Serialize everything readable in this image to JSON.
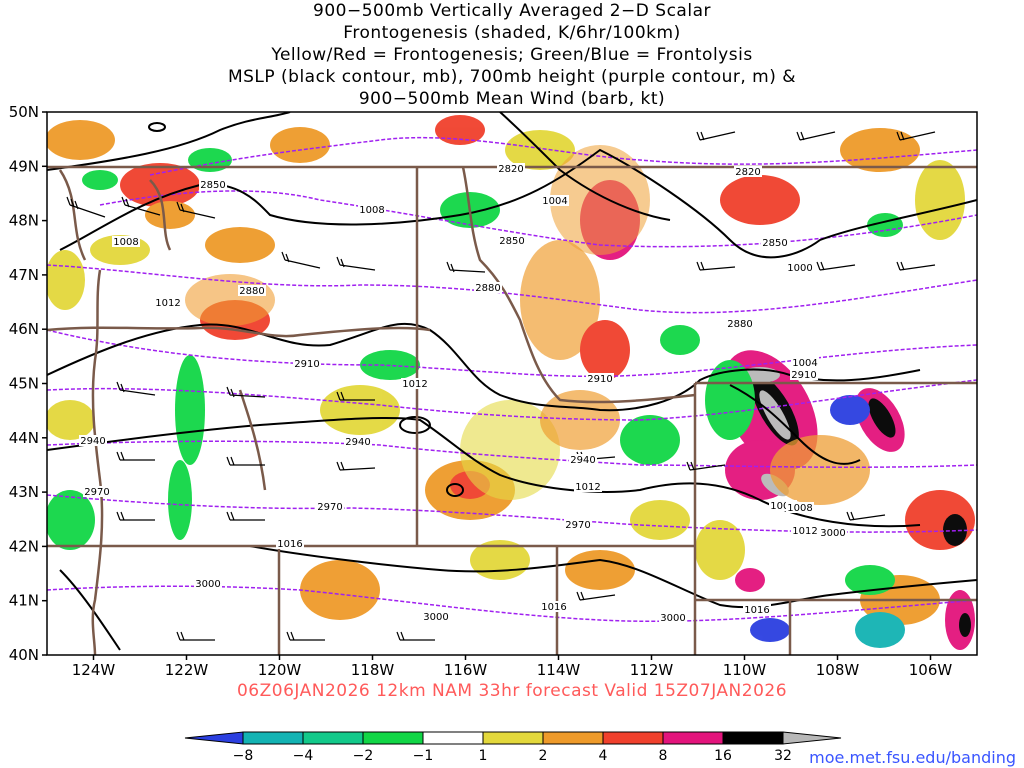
{
  "title": {
    "line1": "900−500mb Vertically Averaged 2−D Scalar",
    "line2": "Frontogenesis (shaded, K/6hr/100km)",
    "line3": "Yellow/Red = Frontogenesis;  Green/Blue = Frontolysis",
    "line4": "MSLP (black contour, mb), 700mb height (purple contour, m) &",
    "line5": "900−500mb Mean Wind (barb, kt)"
  },
  "lat_labels": [
    "50N",
    "49N",
    "48N",
    "47N",
    "46N",
    "45N",
    "44N",
    "43N",
    "42N",
    "41N",
    "40N"
  ],
  "lon_labels": [
    "124W",
    "122W",
    "120W",
    "118W",
    "116W",
    "114W",
    "112W",
    "110W",
    "108W",
    "106W"
  ],
  "mslp_labels": [
    "1004",
    "1008",
    "1008",
    "1012",
    "1012",
    "1008",
    "1012",
    "1004",
    "1016",
    "1016",
    "1008",
    "1012",
    "1016",
    "1008",
    "1004",
    "1000"
  ],
  "height_labels": [
    "2820",
    "2820",
    "2850",
    "2850",
    "2850",
    "2880",
    "2880",
    "2880",
    "2910",
    "2910",
    "2910",
    "2940",
    "2940",
    "2940",
    "2970",
    "2970",
    "2970",
    "3000",
    "3000",
    "3000",
    "3000"
  ],
  "valid_text": "06Z06JAN2026 12km NAM 33hr forecast Valid 15Z07JAN2026",
  "credit": "moe.met.fsu.edu/banding",
  "colorbar": {
    "labels": [
      "−8",
      "−4",
      "−2",
      "−1",
      "1",
      "2",
      "4",
      "8",
      "16",
      "32"
    ],
    "colors": [
      "#2b3fe0",
      "#13b3b3",
      "#12c98a",
      "#11d646",
      "#ffffff",
      "#e3d83c",
      "#ee9a2a",
      "#f0402c",
      "#e3147c",
      "#000000",
      "#b8b8b8"
    ]
  },
  "colors": {
    "mslp_contour": "#000000",
    "height_contour": "#a020f0",
    "borders": "#7a5a4a",
    "valid_text": "#ff5a5a",
    "credit": "#3a55ff"
  },
  "map": {
    "lat_range": [
      40,
      50
    ],
    "lon_range": [
      -125,
      -105
    ]
  }
}
